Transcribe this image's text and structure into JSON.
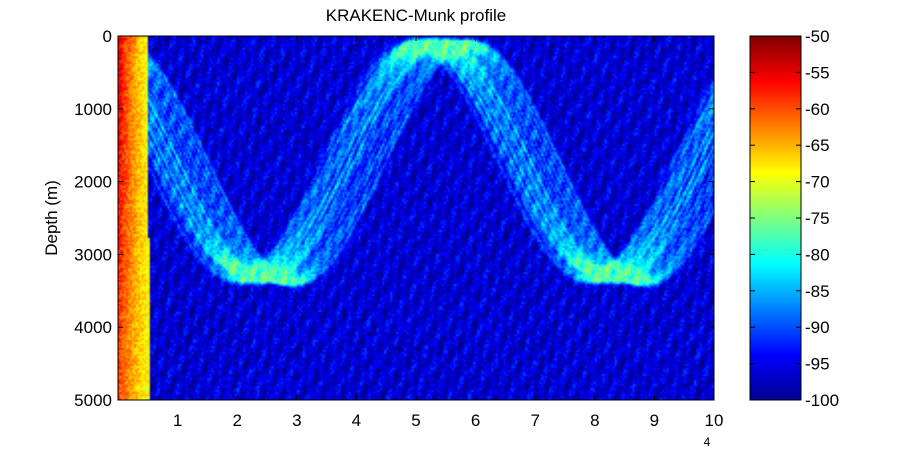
{
  "chart_data": {
    "type": "heatmap",
    "title": "KRAKENC-Munk profile",
    "xlabel": "",
    "ylabel": "Depth (m)",
    "x_multiplier_label": "4",
    "xlim": [
      0,
      10
    ],
    "ylim": [
      0,
      5000
    ],
    "y_reversed": true,
    "x_ticks": [
      1,
      2,
      3,
      4,
      5,
      6,
      7,
      8,
      9,
      10
    ],
    "x_tick_labels": [
      "1",
      "2",
      "3",
      "4",
      "5",
      "6",
      "7",
      "8",
      "9",
      "10"
    ],
    "y_ticks": [
      0,
      1000,
      2000,
      3000,
      4000,
      5000
    ],
    "y_tick_labels": [
      "0",
      "1000",
      "2000",
      "3000",
      "4000",
      "5000"
    ],
    "colorbar": {
      "colormap": "jet",
      "range": [
        -100,
        -50
      ],
      "ticks": [
        -50,
        -55,
        -60,
        -65,
        -70,
        -75,
        -80,
        -85,
        -90,
        -95,
        -100
      ],
      "tick_labels": [
        "-50",
        "-55",
        "-60",
        "-65",
        "-70",
        "-75",
        "-80",
        "-85",
        "-90",
        "-95",
        "-100"
      ]
    },
    "features": {
      "background_level": -95,
      "source_depth": 0,
      "first_bottom_turning": [
        3.0,
        3400
      ],
      "surface_return": [
        6.0,
        100
      ],
      "second_bottom_turning": [
        8.8,
        3400
      ]
    }
  }
}
